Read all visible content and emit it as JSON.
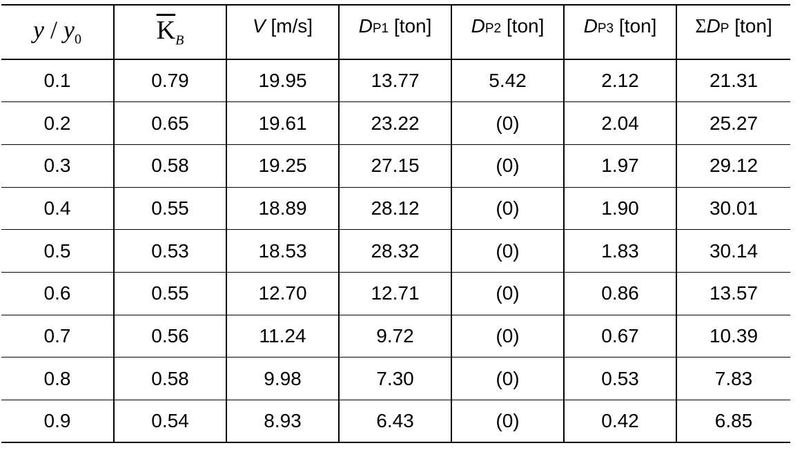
{
  "table": {
    "headers": {
      "col1": {
        "var": "y",
        "sep": "/",
        "var2": "y",
        "sub": "0"
      },
      "col2": {
        "base": "K",
        "sub": "B"
      },
      "col3": {
        "var": "V",
        "unit": " [m/s]"
      },
      "col4": {
        "var": "D",
        "sub": "P1",
        "unit": " [ton]"
      },
      "col5": {
        "var": "D",
        "sub": "P2",
        "unit": " [ton]"
      },
      "col6": {
        "var": "D",
        "sub": "P3",
        "unit": " [ton]"
      },
      "col7": {
        "prefix": "Σ",
        "var": "D",
        "sub": "P",
        "unit": " [ton]"
      }
    },
    "rows": [
      [
        "0.1",
        "0.79",
        "19.95",
        "13.77",
        "5.42",
        "2.12",
        "21.31"
      ],
      [
        "0.2",
        "0.65",
        "19.61",
        "23.22",
        "(0)",
        "2.04",
        "25.27"
      ],
      [
        "0.3",
        "0.58",
        "19.25",
        "27.15",
        "(0)",
        "1.97",
        "29.12"
      ],
      [
        "0.4",
        "0.55",
        "18.89",
        "28.12",
        "(0)",
        "1.90",
        "30.01"
      ],
      [
        "0.5",
        "0.53",
        "18.53",
        "28.32",
        "(0)",
        "1.83",
        "30.14"
      ],
      [
        "0.6",
        "0.55",
        "12.70",
        "12.71",
        "(0)",
        "0.86",
        "13.57"
      ],
      [
        "0.7",
        "0.56",
        "11.24",
        "9.72",
        "(0)",
        "0.67",
        "10.39"
      ],
      [
        "0.8",
        "0.58",
        "9.98",
        "7.30",
        "(0)",
        "0.53",
        "7.83"
      ],
      [
        "0.9",
        "0.54",
        "8.93",
        "6.43",
        "(0)",
        "0.42",
        "6.85"
      ]
    ]
  }
}
